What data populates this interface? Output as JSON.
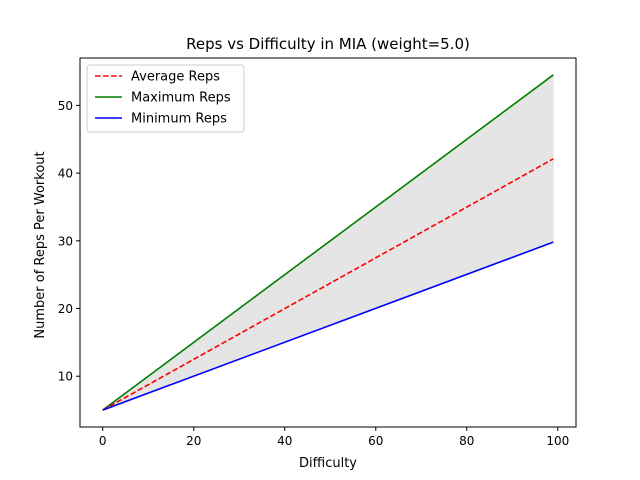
{
  "chart_data": {
    "type": "line",
    "title": "Reps vs Difficulty in MIA (weight=5.0)",
    "xlabel": "Difficulty",
    "ylabel": "Number of Reps Per Workout",
    "xlim": [
      -5,
      104
    ],
    "ylim": [
      2.5,
      57
    ],
    "xticks": [
      0,
      20,
      40,
      60,
      80,
      100
    ],
    "yticks": [
      10,
      20,
      30,
      40,
      50
    ],
    "grid": false,
    "legend_position": "top-left",
    "fill_between": {
      "lower": "Minimum Reps",
      "upper": "Maximum Reps",
      "color": "#e5e5e5"
    },
    "x": [
      0,
      99
    ],
    "series": [
      {
        "name": "Average Reps",
        "values": [
          5.0,
          42.1
        ],
        "color": "#ff0000",
        "style": "dashed"
      },
      {
        "name": "Maximum Reps",
        "values": [
          5.0,
          54.5
        ],
        "color": "#008000",
        "style": "solid"
      },
      {
        "name": "Minimum Reps",
        "values": [
          5.0,
          29.8
        ],
        "color": "#0000ff",
        "style": "solid"
      }
    ]
  }
}
